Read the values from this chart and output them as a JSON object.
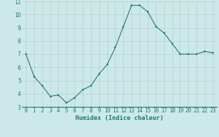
{
  "x": [
    0,
    1,
    2,
    3,
    4,
    5,
    6,
    7,
    8,
    9,
    10,
    11,
    12,
    13,
    14,
    15,
    16,
    17,
    18,
    19,
    20,
    21,
    22,
    23
  ],
  "y": [
    7.0,
    5.3,
    4.6,
    3.8,
    3.9,
    3.3,
    3.7,
    4.3,
    4.6,
    5.5,
    6.2,
    7.5,
    9.1,
    10.7,
    10.7,
    10.2,
    9.1,
    8.6,
    7.8,
    7.0,
    7.0,
    7.0,
    7.2,
    7.1
  ],
  "xlabel": "Humidex (Indice chaleur)",
  "ylim": [
    3,
    11
  ],
  "yticks": [
    3,
    4,
    5,
    6,
    7,
    8,
    9,
    10,
    11
  ],
  "xticks": [
    0,
    1,
    2,
    3,
    4,
    5,
    6,
    7,
    8,
    9,
    10,
    11,
    12,
    13,
    14,
    15,
    16,
    17,
    18,
    19,
    20,
    21,
    22,
    23
  ],
  "line_color": "#1a7a6e",
  "marker_color": "#1a7a6e",
  "bg_color": "#cce8e8",
  "grid_color": "#b8d4d0",
  "xlabel_color": "#1a7a6e",
  "tick_color": "#1a7a6e",
  "font_family": "monospace",
  "tick_fontsize": 5.5,
  "xlabel_fontsize": 6.5,
  "linewidth": 0.8,
  "markersize": 2.0
}
